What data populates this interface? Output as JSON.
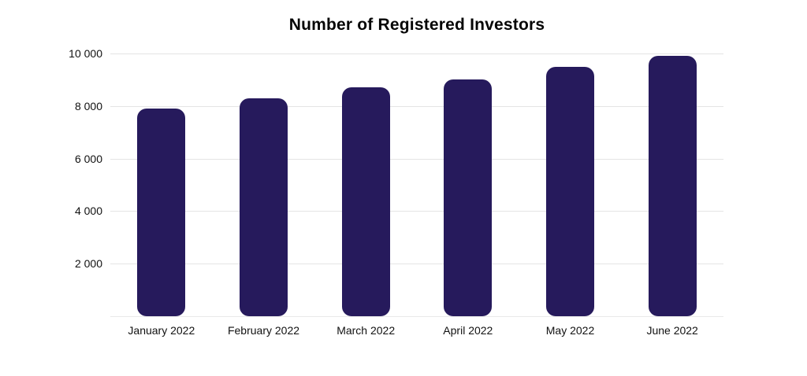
{
  "chart_data": {
    "type": "bar",
    "title": "Number of Registered Investors",
    "categories": [
      "January 2022",
      "February 2022",
      "March 2022",
      "April 2022",
      "May 2022",
      "June 2022"
    ],
    "values": [
      7900,
      8300,
      8700,
      9000,
      9500,
      9900
    ],
    "xlabel": "",
    "ylabel": "",
    "ylim": [
      0,
      10000
    ],
    "yticks": [
      2000,
      4000,
      6000,
      8000,
      10000
    ],
    "ytick_labels": [
      "2 000",
      "4 000",
      "6 000",
      "8 000",
      "10 000"
    ],
    "grid": "horizontal-only",
    "legend": "none",
    "bar_color": "#261a5c",
    "gridline_color": "#e4e4e4",
    "title_color": "#050505",
    "label_color": "#111111",
    "background_color": "#ffffff"
  },
  "layout_note": "single bar chart, white background, rounded bars"
}
